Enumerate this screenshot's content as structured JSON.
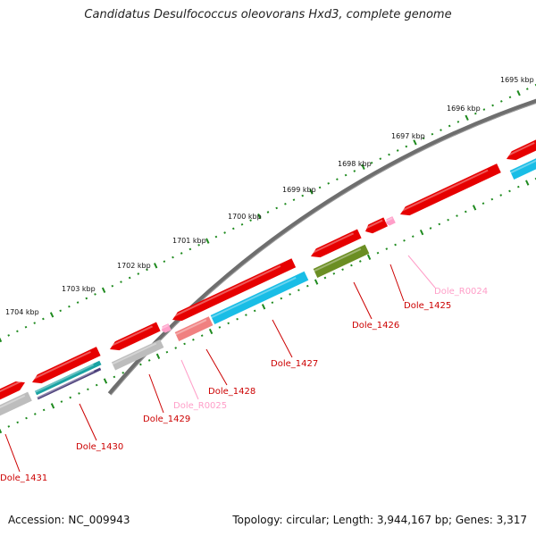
{
  "title": "Candidatus Desulfococcus oleovorans Hxd3, complete genome",
  "footer": {
    "accession_label": "Accession:",
    "accession_value": "NC_009943",
    "topology_text": "Topology: circular; Length: 3,944,167 bp; Genes: 3,317"
  },
  "colors": {
    "backbone": "#6e6e6e",
    "tick_dots": "#1e8a1e",
    "cds": "#e60000",
    "cds_pale": "#f08080",
    "cds_cyan": "#19bde6",
    "cds_olive": "#6b8e23",
    "cds_gray": "#bdbdbd",
    "cds_teal": "#1aa3a3",
    "cds_purple": "#4b3f7a",
    "rna": "#ff9ec8",
    "label_gene": "#cc0000",
    "label_rna": "#ff9ec8"
  },
  "scale_labels": [
    "1695 kbp",
    "1696 kbp",
    "1697 kbp",
    "1698 kbp",
    "1699 kbp",
    "1700 kbp",
    "1701 kbp",
    "1702 kbp",
    "1703 kbp",
    "1704 kbp"
  ],
  "gene_labels": [
    "Dole_R0024",
    "Dole_1425",
    "Dole_1426",
    "Dole_1427",
    "Dole_1428",
    "Dole_R0025",
    "Dole_1429",
    "Dole_1430",
    "Dole_1431"
  ]
}
